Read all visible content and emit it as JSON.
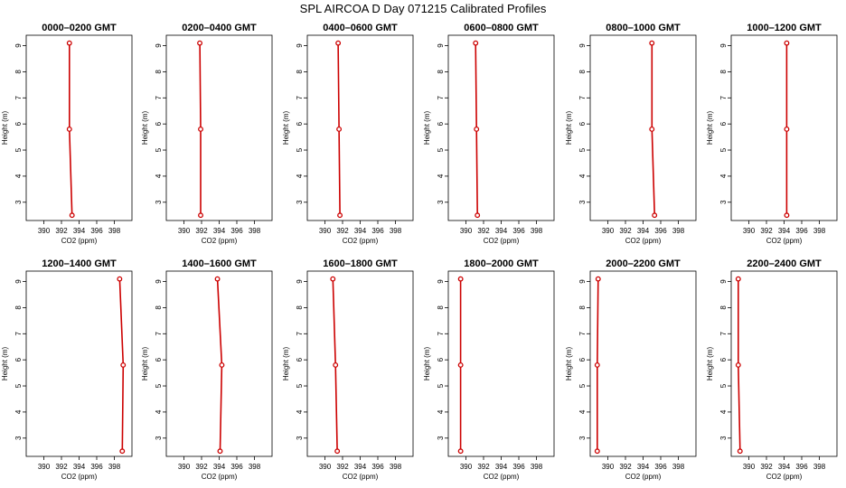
{
  "figure": {
    "title": "SPL AIRCOA D  Day 071215  Calibrated Profiles"
  },
  "chart_data": [
    {
      "type": "line",
      "title": "0000–0200 GMT",
      "xlabel": "CO2 (ppm)",
      "ylabel": "Height (m)",
      "xlim": [
        388,
        400
      ],
      "ylim": [
        2.3,
        9.4
      ],
      "x_ticks": [
        390,
        392,
        394,
        396,
        398
      ],
      "y_ticks": [
        3,
        4,
        5,
        6,
        7,
        8,
        9
      ],
      "series": [
        {
          "color": "#cc0000",
          "points": [
            {
              "x": 392.9,
              "y": 9.1
            },
            {
              "x": 392.9,
              "y": 5.8
            },
            {
              "x": 393.2,
              "y": 2.5
            }
          ]
        }
      ]
    },
    {
      "type": "line",
      "title": "0200–0400 GMT",
      "xlabel": "CO2 (ppm)",
      "ylabel": "Height (m)",
      "xlim": [
        388,
        400
      ],
      "ylim": [
        2.3,
        9.4
      ],
      "x_ticks": [
        390,
        392,
        394,
        396,
        398
      ],
      "y_ticks": [
        3,
        4,
        5,
        6,
        7,
        8,
        9
      ],
      "series": [
        {
          "color": "#cc0000",
          "points": [
            {
              "x": 391.8,
              "y": 9.1
            },
            {
              "x": 391.9,
              "y": 5.8
            },
            {
              "x": 391.9,
              "y": 2.5
            }
          ]
        }
      ]
    },
    {
      "type": "line",
      "title": "0400–0600 GMT",
      "xlabel": "CO2 (ppm)",
      "ylabel": "Height (m)",
      "xlim": [
        388,
        400
      ],
      "ylim": [
        2.3,
        9.4
      ],
      "x_ticks": [
        390,
        392,
        394,
        396,
        398
      ],
      "y_ticks": [
        3,
        4,
        5,
        6,
        7,
        8,
        9
      ],
      "series": [
        {
          "color": "#cc0000",
          "points": [
            {
              "x": 391.5,
              "y": 9.1
            },
            {
              "x": 391.6,
              "y": 5.8
            },
            {
              "x": 391.7,
              "y": 2.5
            }
          ]
        }
      ]
    },
    {
      "type": "line",
      "title": "0600–0800 GMT",
      "xlabel": "CO2 (ppm)",
      "ylabel": "Height (m)",
      "xlim": [
        388,
        400
      ],
      "ylim": [
        2.3,
        9.4
      ],
      "x_ticks": [
        390,
        392,
        394,
        396,
        398
      ],
      "y_ticks": [
        3,
        4,
        5,
        6,
        7,
        8,
        9
      ],
      "series": [
        {
          "color": "#cc0000",
          "points": [
            {
              "x": 391.1,
              "y": 9.1
            },
            {
              "x": 391.2,
              "y": 5.8
            },
            {
              "x": 391.3,
              "y": 2.5
            }
          ]
        }
      ]
    },
    {
      "type": "line",
      "title": "0800–1000 GMT",
      "xlabel": "CO2 (ppm)",
      "ylabel": "Height (m)",
      "xlim": [
        388,
        400
      ],
      "ylim": [
        2.3,
        9.4
      ],
      "x_ticks": [
        390,
        392,
        394,
        396,
        398
      ],
      "y_ticks": [
        3,
        4,
        5,
        6,
        7,
        8,
        9
      ],
      "series": [
        {
          "color": "#cc0000",
          "points": [
            {
              "x": 395.0,
              "y": 9.1
            },
            {
              "x": 395.0,
              "y": 5.8
            },
            {
              "x": 395.3,
              "y": 2.5
            }
          ]
        }
      ]
    },
    {
      "type": "line",
      "title": "1000–1200 GMT",
      "xlabel": "CO2 (ppm)",
      "ylabel": "Height (m)",
      "xlim": [
        388,
        400
      ],
      "ylim": [
        2.3,
        9.4
      ],
      "x_ticks": [
        390,
        392,
        394,
        396,
        398
      ],
      "y_ticks": [
        3,
        4,
        5,
        6,
        7,
        8,
        9
      ],
      "series": [
        {
          "color": "#cc0000",
          "points": [
            {
              "x": 394.3,
              "y": 9.1
            },
            {
              "x": 394.3,
              "y": 5.8
            },
            {
              "x": 394.3,
              "y": 2.5
            }
          ]
        }
      ]
    },
    {
      "type": "line",
      "title": "1200–1400 GMT",
      "xlabel": "CO2 (ppm)",
      "ylabel": "Height (m)",
      "xlim": [
        388,
        400
      ],
      "ylim": [
        2.3,
        9.4
      ],
      "x_ticks": [
        390,
        392,
        394,
        396,
        398
      ],
      "y_ticks": [
        3,
        4,
        5,
        6,
        7,
        8,
        9
      ],
      "series": [
        {
          "color": "#cc0000",
          "points": [
            {
              "x": 398.6,
              "y": 9.1
            },
            {
              "x": 399.0,
              "y": 5.8
            },
            {
              "x": 398.9,
              "y": 2.5
            }
          ]
        }
      ]
    },
    {
      "type": "line",
      "title": "1400–1600 GMT",
      "xlabel": "CO2 (ppm)",
      "ylabel": "Height (m)",
      "xlim": [
        388,
        400
      ],
      "ylim": [
        2.3,
        9.4
      ],
      "x_ticks": [
        390,
        392,
        394,
        396,
        398
      ],
      "y_ticks": [
        3,
        4,
        5,
        6,
        7,
        8,
        9
      ],
      "series": [
        {
          "color": "#cc0000",
          "points": [
            {
              "x": 393.8,
              "y": 9.1
            },
            {
              "x": 394.3,
              "y": 5.8
            },
            {
              "x": 394.1,
              "y": 2.5
            }
          ]
        }
      ]
    },
    {
      "type": "line",
      "title": "1600–1800 GMT",
      "xlabel": "CO2 (ppm)",
      "ylabel": "Height (m)",
      "xlim": [
        388,
        400
      ],
      "ylim": [
        2.3,
        9.4
      ],
      "x_ticks": [
        390,
        392,
        394,
        396,
        398
      ],
      "y_ticks": [
        3,
        4,
        5,
        6,
        7,
        8,
        9
      ],
      "series": [
        {
          "color": "#cc0000",
          "points": [
            {
              "x": 390.9,
              "y": 9.1
            },
            {
              "x": 391.2,
              "y": 5.8
            },
            {
              "x": 391.4,
              "y": 2.5
            }
          ]
        }
      ]
    },
    {
      "type": "line",
      "title": "1800–2000 GMT",
      "xlabel": "CO2 (ppm)",
      "ylabel": "Height (m)",
      "xlim": [
        388,
        400
      ],
      "ylim": [
        2.3,
        9.4
      ],
      "x_ticks": [
        390,
        392,
        394,
        396,
        398
      ],
      "y_ticks": [
        3,
        4,
        5,
        6,
        7,
        8,
        9
      ],
      "series": [
        {
          "color": "#cc0000",
          "points": [
            {
              "x": 389.4,
              "y": 9.1
            },
            {
              "x": 389.4,
              "y": 5.8
            },
            {
              "x": 389.4,
              "y": 2.5
            }
          ]
        }
      ]
    },
    {
      "type": "line",
      "title": "2000–2200 GMT",
      "xlabel": "CO2 (ppm)",
      "ylabel": "Height (m)",
      "xlim": [
        388,
        400
      ],
      "ylim": [
        2.3,
        9.4
      ],
      "x_ticks": [
        390,
        392,
        394,
        396,
        398
      ],
      "y_ticks": [
        3,
        4,
        5,
        6,
        7,
        8,
        9
      ],
      "series": [
        {
          "color": "#cc0000",
          "points": [
            {
              "x": 388.9,
              "y": 9.1
            },
            {
              "x": 388.8,
              "y": 5.8
            },
            {
              "x": 388.8,
              "y": 2.5
            }
          ]
        }
      ]
    },
    {
      "type": "line",
      "title": "2200–2400 GMT",
      "xlabel": "CO2 (ppm)",
      "ylabel": "Height (m)",
      "xlim": [
        388,
        400
      ],
      "ylim": [
        2.3,
        9.4
      ],
      "x_ticks": [
        390,
        392,
        394,
        396,
        398
      ],
      "y_ticks": [
        3,
        4,
        5,
        6,
        7,
        8,
        9
      ],
      "series": [
        {
          "color": "#cc0000",
          "points": [
            {
              "x": 388.8,
              "y": 9.1
            },
            {
              "x": 388.8,
              "y": 5.8
            },
            {
              "x": 389.0,
              "y": 2.5
            }
          ]
        }
      ]
    }
  ]
}
